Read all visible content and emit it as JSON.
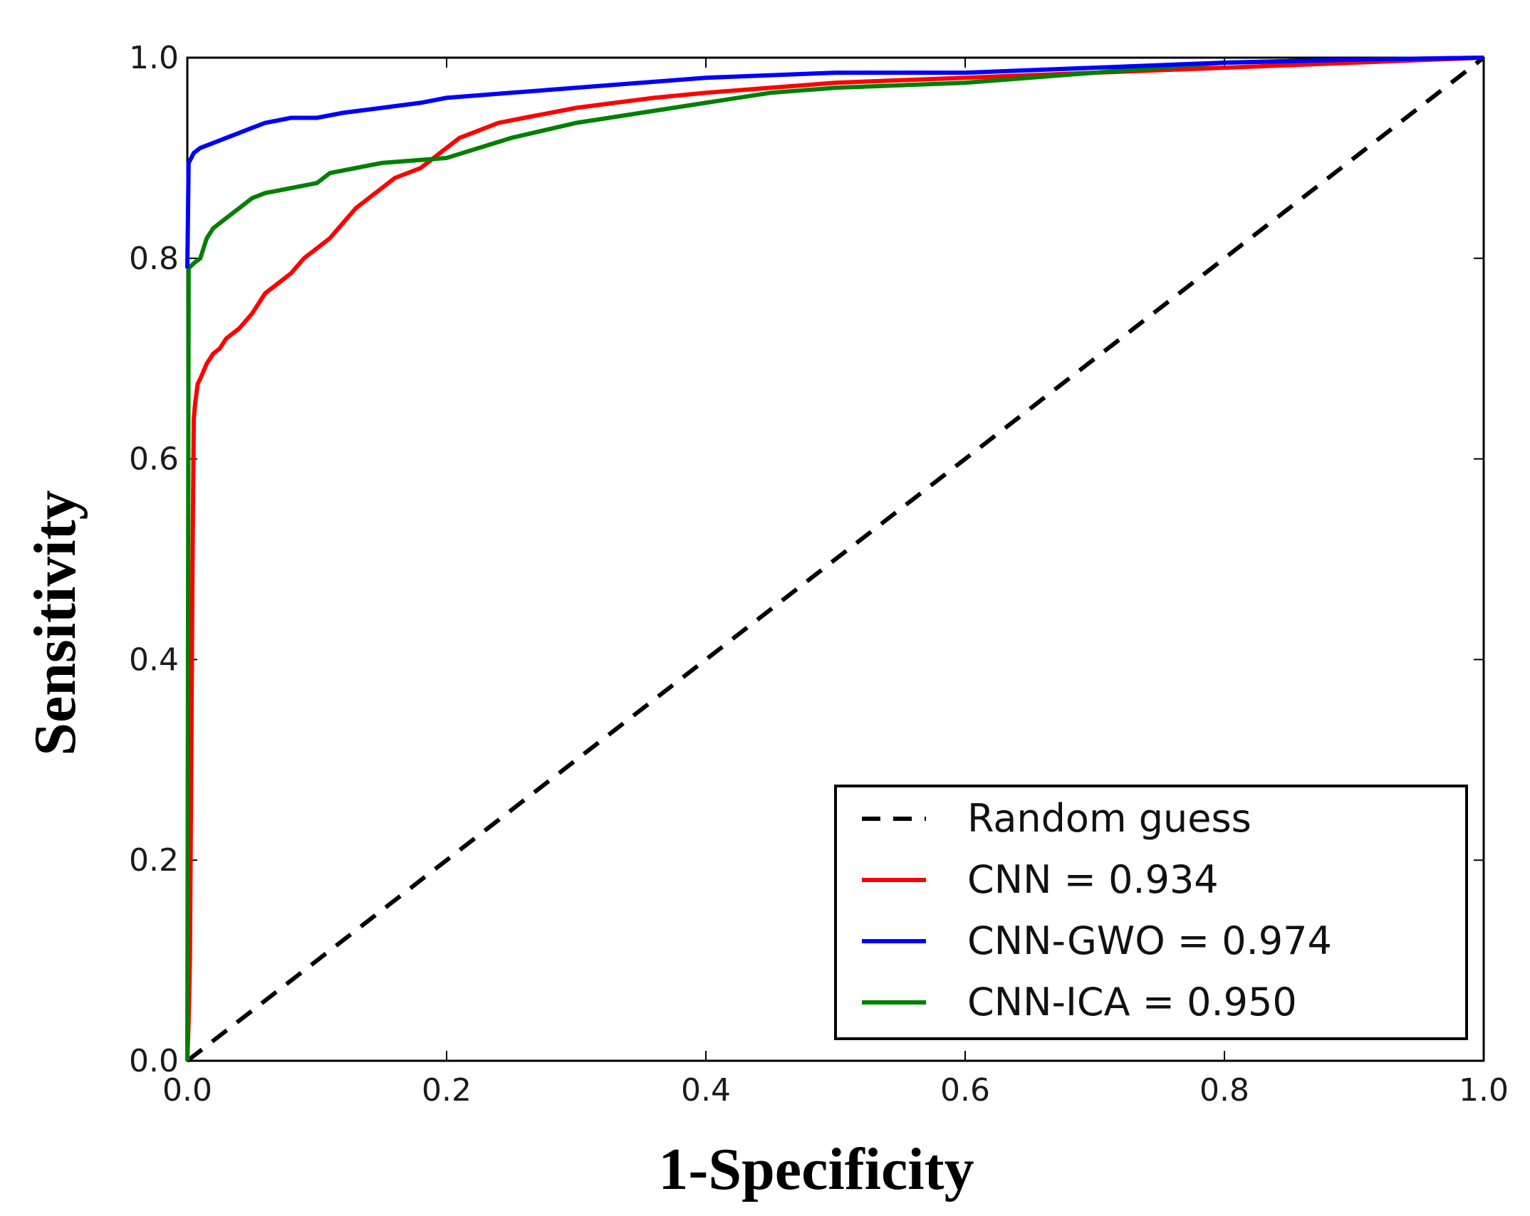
{
  "chart_data": {
    "type": "line",
    "title": "",
    "xlabel": "1-Specificity",
    "ylabel": "Sensitivity",
    "xlim": [
      0,
      1
    ],
    "ylim": [
      0,
      1
    ],
    "x_ticks": [
      "0.0",
      "0.2",
      "0.4",
      "0.6",
      "0.8",
      "1.0"
    ],
    "y_ticks": [
      "0.0",
      "0.2",
      "0.4",
      "0.6",
      "0.8",
      "1.0"
    ],
    "grid": false,
    "legend_position": "bottom-right",
    "series": [
      {
        "name": "Random guess",
        "label": "Random guess",
        "color": "#000000",
        "style": "dashed",
        "x": [
          0,
          1
        ],
        "y": [
          0,
          1
        ]
      },
      {
        "name": "CNN",
        "label": "CNN = 0.934",
        "color": "#ff0000",
        "style": "solid",
        "x": [
          0,
          0.001,
          0.002,
          0.003,
          0.004,
          0.005,
          0.006,
          0.008,
          0.01,
          0.015,
          0.02,
          0.025,
          0.03,
          0.04,
          0.05,
          0.06,
          0.07,
          0.08,
          0.09,
          0.1,
          0.11,
          0.12,
          0.13,
          0.14,
          0.15,
          0.16,
          0.17,
          0.18,
          0.19,
          0.2,
          0.21,
          0.22,
          0.24,
          0.26,
          0.28,
          0.3,
          0.33,
          0.36,
          0.4,
          0.45,
          0.5,
          0.6,
          0.7,
          0.8,
          0.9,
          1.0
        ],
        "y": [
          0,
          0.04,
          0.1,
          0.3,
          0.5,
          0.64,
          0.655,
          0.675,
          0.68,
          0.695,
          0.705,
          0.71,
          0.72,
          0.73,
          0.745,
          0.765,
          0.775,
          0.785,
          0.8,
          0.81,
          0.82,
          0.835,
          0.85,
          0.86,
          0.87,
          0.88,
          0.885,
          0.89,
          0.9,
          0.91,
          0.92,
          0.925,
          0.935,
          0.94,
          0.945,
          0.95,
          0.955,
          0.96,
          0.965,
          0.97,
          0.975,
          0.98,
          0.985,
          0.99,
          0.995,
          1.0
        ]
      },
      {
        "name": "CNN-GWO",
        "label": "CNN-GWO = 0.974",
        "color": "#0000ff",
        "style": "solid",
        "x": [
          0,
          0.001,
          0.005,
          0.01,
          0.02,
          0.03,
          0.04,
          0.05,
          0.06,
          0.08,
          0.1,
          0.12,
          0.15,
          0.18,
          0.2,
          0.25,
          0.3,
          0.35,
          0.4,
          0.5,
          0.6,
          0.7,
          0.8,
          0.9,
          1.0
        ],
        "y": [
          0.79,
          0.895,
          0.905,
          0.91,
          0.915,
          0.92,
          0.925,
          0.93,
          0.935,
          0.94,
          0.94,
          0.945,
          0.95,
          0.955,
          0.96,
          0.965,
          0.97,
          0.975,
          0.98,
          0.985,
          0.985,
          0.99,
          0.995,
          0.998,
          1.0
        ]
      },
      {
        "name": "CNN-ICA",
        "label": "CNN-ICA = 0.950",
        "color": "#008000",
        "style": "solid",
        "x": [
          0,
          0.001,
          0.005,
          0.01,
          0.015,
          0.02,
          0.03,
          0.04,
          0.05,
          0.06,
          0.08,
          0.1,
          0.11,
          0.13,
          0.15,
          0.2,
          0.25,
          0.3,
          0.35,
          0.4,
          0.45,
          0.5,
          0.6,
          0.7,
          0.8,
          0.9,
          1.0
        ],
        "y": [
          0,
          0.79,
          0.795,
          0.8,
          0.82,
          0.83,
          0.84,
          0.85,
          0.86,
          0.865,
          0.87,
          0.875,
          0.885,
          0.89,
          0.895,
          0.9,
          0.92,
          0.935,
          0.945,
          0.955,
          0.965,
          0.97,
          0.975,
          0.985,
          0.995,
          0.998,
          1.0
        ]
      }
    ]
  }
}
